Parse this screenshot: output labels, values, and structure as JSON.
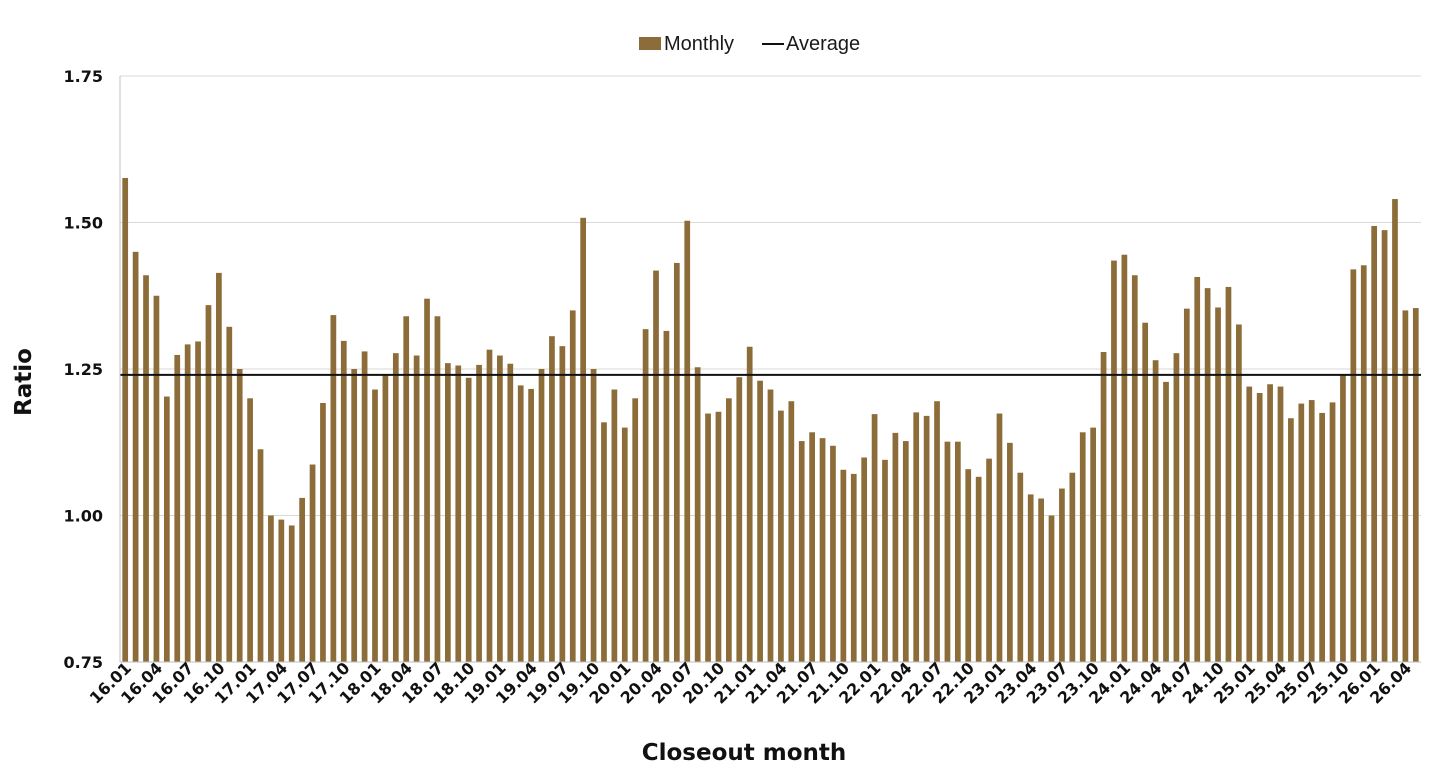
{
  "chart_data": {
    "type": "bar",
    "xlabel": "Closeout month",
    "ylabel": "Ratio",
    "ylim": [
      0.75,
      1.75
    ],
    "yticks": [
      "0.75",
      "1.00",
      "1.25",
      "1.50",
      "1.75"
    ],
    "tick_labels": [
      "16.01",
      "16.04",
      "16.07",
      "16.10",
      "17.01",
      "17.04",
      "17.07",
      "17.10",
      "18.01",
      "18.04",
      "18.07",
      "18.10",
      "19.01",
      "19.04",
      "19.07",
      "19.10",
      "20.01",
      "20.04",
      "20.07",
      "20.10",
      "21.01",
      "21.04",
      "21.07",
      "21.10",
      "22.01",
      "22.04",
      "22.07",
      "22.10",
      "23.01",
      "23.04",
      "23.07",
      "23.10",
      "24.01",
      "24.04",
      "24.07",
      "24.10",
      "25.01",
      "25.04",
      "25.07",
      "25.10",
      "26.01",
      "26.04"
    ],
    "grid": true,
    "legend_position": "top-center",
    "series": [
      {
        "name": "Monthly",
        "type": "bar",
        "color": "#8c6d3a",
        "values": [
          1.576,
          1.45,
          1.41,
          1.375,
          1.203,
          1.274,
          1.292,
          1.297,
          1.359,
          1.414,
          1.322,
          1.25,
          1.2,
          1.113,
          1.0,
          0.993,
          0.983,
          1.03,
          1.087,
          1.192,
          1.342,
          1.298,
          1.25,
          1.28,
          1.215,
          1.24,
          1.277,
          1.34,
          1.273,
          1.37,
          1.34,
          1.26,
          1.256,
          1.235,
          1.257,
          1.283,
          1.273,
          1.259,
          1.222,
          1.216,
          1.25,
          1.306,
          1.289,
          1.35,
          1.508,
          1.25,
          1.159,
          1.215,
          1.15,
          1.2,
          1.318,
          1.418,
          1.315,
          1.431,
          1.503,
          1.253,
          1.174,
          1.177,
          1.2,
          1.236,
          1.288,
          1.23,
          1.215,
          1.179,
          1.195,
          1.127,
          1.142,
          1.132,
          1.119,
          1.078,
          1.071,
          1.099,
          1.173,
          1.095,
          1.141,
          1.127,
          1.176,
          1.17,
          1.195,
          1.126,
          1.126,
          1.079,
          1.066,
          1.097,
          1.174,
          1.124,
          1.073,
          1.036,
          1.029,
          1.0,
          1.046,
          1.073,
          1.142,
          1.15,
          1.279,
          1.435,
          1.445,
          1.41,
          1.329,
          1.265,
          1.228,
          1.277,
          1.353,
          1.407,
          1.388,
          1.355,
          1.39,
          1.326,
          1.22,
          1.209,
          1.224,
          1.22,
          1.166,
          1.191,
          1.197,
          1.175,
          1.193,
          1.241,
          1.42,
          1.427,
          1.494,
          1.487,
          1.54,
          1.35,
          1.354
        ]
      },
      {
        "name": "Average",
        "type": "line",
        "color": "#111111",
        "value": 1.24
      }
    ]
  }
}
